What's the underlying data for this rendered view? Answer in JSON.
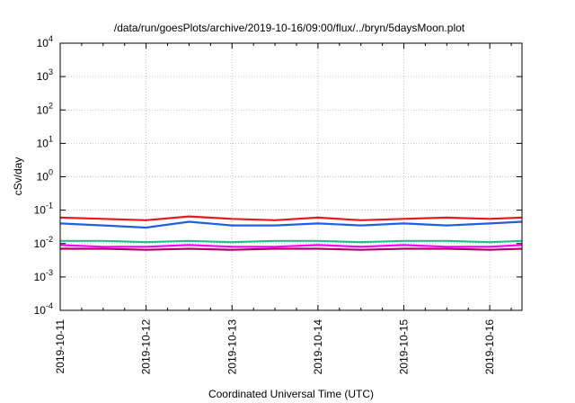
{
  "chart_data": {
    "type": "line",
    "title": "/data/run/goesPlots/archive/2019-10-16/09:00/flux/../bryn/5daysMoon.plot",
    "xlabel": "Coordinated Universal Time (UTC)",
    "ylabel": "cSv/day",
    "yscale": "log",
    "ylim": [
      0.0001,
      10000
    ],
    "xlim": [
      "2019-10-11",
      "2019-10-16 09:00"
    ],
    "y_ticks": [
      {
        "base": "10",
        "exp": "4"
      },
      {
        "base": "10",
        "exp": "3"
      },
      {
        "base": "10",
        "exp": "2"
      },
      {
        "base": "10",
        "exp": "1"
      },
      {
        "base": "10",
        "exp": "0"
      },
      {
        "base": "10",
        "exp": "-1"
      },
      {
        "base": "10",
        "exp": "-2"
      },
      {
        "base": "10",
        "exp": "-3"
      },
      {
        "base": "10",
        "exp": "-4"
      }
    ],
    "x_ticks": [
      "2019-10-11",
      "2019-10-12",
      "2019-10-13",
      "2019-10-14",
      "2019-10-15",
      "2019-10-16"
    ],
    "grid": true,
    "series": [
      {
        "color": "#e41a1c",
        "x_days": [
          0,
          0.5,
          1,
          1.5,
          2,
          2.5,
          3,
          3.5,
          4,
          4.5,
          5,
          5.375
        ],
        "values": [
          0.06,
          0.055,
          0.05,
          0.065,
          0.055,
          0.05,
          0.06,
          0.05,
          0.055,
          0.06,
          0.055,
          0.06
        ]
      },
      {
        "color": "#1f5fe0",
        "x_days": [
          0,
          0.5,
          1,
          1.5,
          2,
          2.5,
          3,
          3.5,
          4,
          4.5,
          5,
          5.375
        ],
        "values": [
          0.04,
          0.035,
          0.03,
          0.045,
          0.035,
          0.035,
          0.04,
          0.035,
          0.04,
          0.035,
          0.04,
          0.045
        ]
      },
      {
        "color": "#20c088",
        "x_days": [
          0,
          0.5,
          1,
          1.5,
          2,
          2.5,
          3,
          3.5,
          4,
          4.5,
          5,
          5.375
        ],
        "values": [
          0.012,
          0.012,
          0.011,
          0.012,
          0.011,
          0.012,
          0.012,
          0.011,
          0.012,
          0.012,
          0.011,
          0.012
        ]
      },
      {
        "color": "#ff00ff",
        "x_days": [
          0,
          0.5,
          1,
          1.5,
          2,
          2.5,
          3,
          3.5,
          4,
          4.5,
          5,
          5.375
        ],
        "values": [
          0.009,
          0.008,
          0.008,
          0.009,
          0.008,
          0.008,
          0.009,
          0.008,
          0.009,
          0.008,
          0.008,
          0.009
        ]
      },
      {
        "color": "#b0006a",
        "x_days": [
          0,
          0.5,
          1,
          1.5,
          2,
          2.5,
          3,
          3.5,
          4,
          4.5,
          5,
          5.375
        ],
        "values": [
          0.007,
          0.007,
          0.0065,
          0.007,
          0.0065,
          0.007,
          0.007,
          0.0065,
          0.007,
          0.007,
          0.0065,
          0.007
        ]
      }
    ]
  }
}
